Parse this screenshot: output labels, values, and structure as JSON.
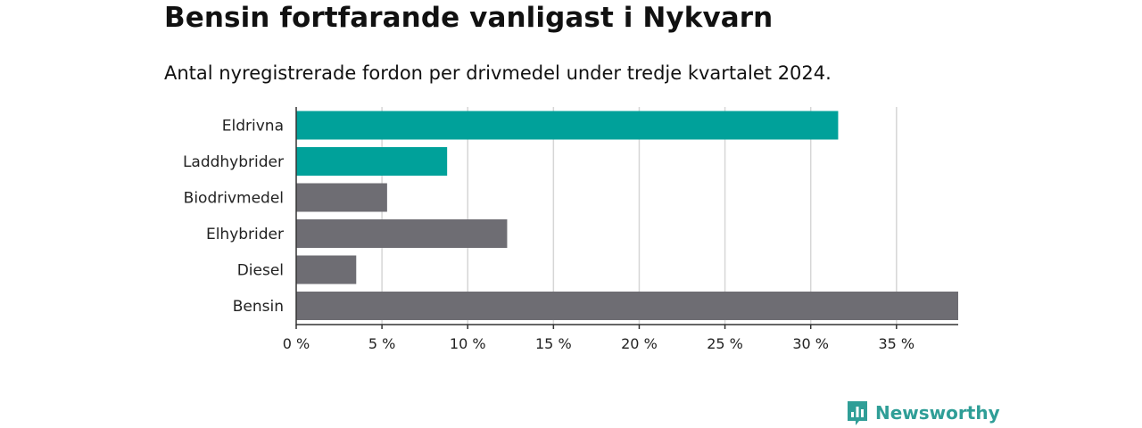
{
  "title": "Bensin fortfarande vanligast i Nykvarn",
  "subtitle": "Antal nyregistrerade fordon per drivmedel under tredje kvartalet 2024.",
  "brand": {
    "name": "Newsworthy",
    "icon": "newsworthy-logo-icon",
    "color": "#2f9e97"
  },
  "colors": {
    "highlight": "#00a19a",
    "default": "#6e6d73",
    "grid": "#d6d6d6",
    "axis": "#333333"
  },
  "chart_data": {
    "type": "bar",
    "orientation": "horizontal",
    "title": "Bensin fortfarande vanligast i Nykvarn",
    "subtitle": "Antal nyregistrerade fordon per drivmedel under tredje kvartalet 2024.",
    "xlabel": "",
    "ylabel": "",
    "unit": "%",
    "categories": [
      "Eldrivna",
      "Laddhybrider",
      "Biodrivmedel",
      "Elhybrider",
      "Diesel",
      "Bensin"
    ],
    "values": [
      31.6,
      8.8,
      5.3,
      12.3,
      3.5,
      38.6
    ],
    "highlight": [
      true,
      true,
      false,
      false,
      false,
      false
    ],
    "xlim": [
      0,
      38.6
    ],
    "xticks": [
      0,
      5,
      10,
      15,
      20,
      25,
      30,
      35
    ],
    "xtick_labels": [
      "0 %",
      "5 %",
      "10 %",
      "15 %",
      "20 %",
      "25 %",
      "30 %",
      "35 %"
    ],
    "grid": true
  }
}
